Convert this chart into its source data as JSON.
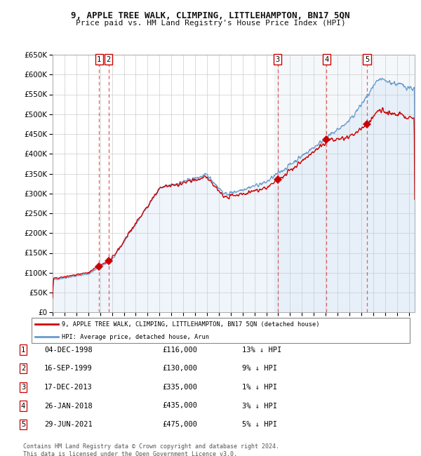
{
  "title": "9, APPLE TREE WALK, CLIMPING, LITTLEHAMPTON, BN17 5QN",
  "subtitle": "Price paid vs. HM Land Registry's House Price Index (HPI)",
  "ylim": [
    0,
    650000
  ],
  "yticks": [
    0,
    50000,
    100000,
    150000,
    200000,
    250000,
    300000,
    350000,
    400000,
    450000,
    500000,
    550000,
    600000,
    650000
  ],
  "xlim_start": 1995.0,
  "xlim_end": 2025.5,
  "sale_dates": [
    1998.92,
    1999.71,
    2013.96,
    2018.07,
    2021.49
  ],
  "sale_prices": [
    116000,
    130000,
    335000,
    435000,
    475000
  ],
  "sale_labels": [
    "1",
    "2",
    "3",
    "4",
    "5"
  ],
  "legend_label_red": "9, APPLE TREE WALK, CLIMPING, LITTLEHAMPTON, BN17 5QN (detached house)",
  "legend_label_blue": "HPI: Average price, detached house, Arun",
  "table_data": [
    [
      "1",
      "04-DEC-1998",
      "£116,000",
      "13% ↓ HPI"
    ],
    [
      "2",
      "16-SEP-1999",
      "£130,000",
      "9% ↓ HPI"
    ],
    [
      "3",
      "17-DEC-2013",
      "£335,000",
      "1% ↓ HPI"
    ],
    [
      "4",
      "26-JAN-2018",
      "£435,000",
      "3% ↓ HPI"
    ],
    [
      "5",
      "29-JUN-2021",
      "£475,000",
      "5% ↓ HPI"
    ]
  ],
  "footer": "Contains HM Land Registry data © Crown copyright and database right 2024.\nThis data is licensed under the Open Government Licence v3.0.",
  "red_line_color": "#cc0000",
  "blue_line_color": "#6699cc",
  "blue_fill_color": "#ddeeff",
  "grid_color": "#cccccc",
  "dashed_line_color": "#dd4444",
  "background_color": "#ffffff",
  "hpi_seed": 42
}
